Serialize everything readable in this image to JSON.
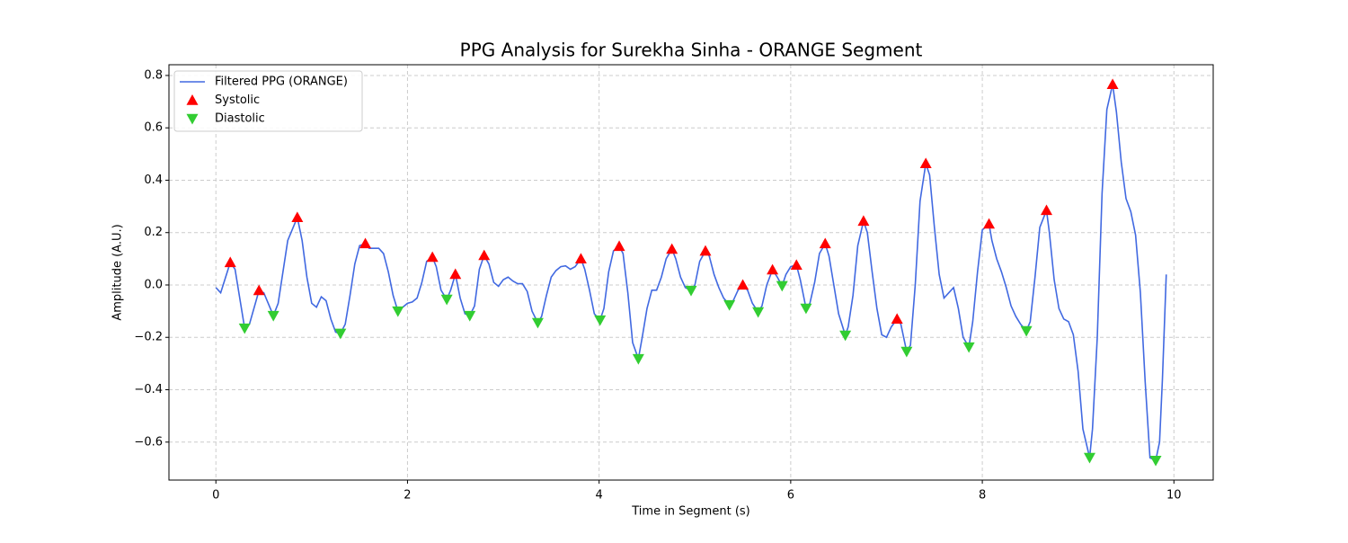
{
  "chart_data": {
    "type": "line",
    "title": "PPG Analysis for Surekha Sinha - ORANGE Segment",
    "x_label": "Time in Segment (s)",
    "y_label": "Amplitude (A.U.)",
    "xlim": [
      -0.49,
      10.41
    ],
    "ylim": [
      -0.745,
      0.841
    ],
    "xticks": [
      0,
      2,
      4,
      6,
      8,
      10
    ],
    "yticks": [
      {
        "value": -0.6,
        "label": "−0.6"
      },
      {
        "value": -0.4,
        "label": "−0.4"
      },
      {
        "value": -0.2,
        "label": "−0.2"
      },
      {
        "value": 0,
        "label": "0.0"
      },
      0.2,
      0.4,
      0.6,
      0.8
    ],
    "grid": true,
    "legend": "upper left",
    "series": [
      {
        "name": "Filtered PPG (ORANGE)",
        "color": "#4169e1",
        "marker": "line",
        "x": [
          0,
          0.05,
          0.15,
          0.2,
          0.3,
          0.35,
          0.45,
          0.5,
          0.6,
          0.65,
          0.75,
          0.85,
          0.9,
          0.95,
          1.0,
          1.05,
          1.1,
          1.15,
          1.2,
          1.25,
          1.3,
          1.35,
          1.4,
          1.45,
          1.5,
          1.56,
          1.6,
          1.7,
          1.75,
          1.8,
          1.85,
          1.9,
          1.95,
          2.0,
          2.05,
          2.1,
          2.15,
          2.2,
          2.26,
          2.3,
          2.35,
          2.41,
          2.45,
          2.5,
          2.55,
          2.6,
          2.65,
          2.7,
          2.75,
          2.8,
          2.85,
          2.9,
          2.95,
          3.0,
          3.05,
          3.1,
          3.15,
          3.2,
          3.25,
          3.3,
          3.36,
          3.4,
          3.45,
          3.5,
          3.55,
          3.6,
          3.65,
          3.7,
          3.75,
          3.81,
          3.85,
          3.9,
          3.95,
          4.01,
          4.05,
          4.1,
          4.15,
          4.21,
          4.25,
          4.3,
          4.35,
          4.41,
          4.45,
          4.5,
          4.55,
          4.6,
          4.65,
          4.7,
          4.76,
          4.8,
          4.85,
          4.9,
          4.96,
          5.0,
          5.05,
          5.11,
          5.15,
          5.2,
          5.25,
          5.3,
          5.36,
          5.4,
          5.45,
          5.5,
          5.55,
          5.6,
          5.66,
          5.7,
          5.75,
          5.81,
          5.86,
          5.91,
          5.95,
          6.0,
          6.06,
          6.1,
          6.16,
          6.2,
          6.25,
          6.3,
          6.36,
          6.4,
          6.45,
          6.5,
          6.57,
          6.6,
          6.65,
          6.7,
          6.76,
          6.8,
          6.85,
          6.9,
          6.95,
          7.0,
          7.05,
          7.11,
          7.15,
          7.21,
          7.25,
          7.3,
          7.35,
          7.41,
          7.45,
          7.5,
          7.55,
          7.6,
          7.65,
          7.7,
          7.75,
          7.8,
          7.86,
          7.9,
          7.95,
          8.0,
          8.07,
          8.1,
          8.15,
          8.2,
          8.25,
          8.3,
          8.35,
          8.4,
          8.46,
          8.5,
          8.55,
          8.6,
          8.67,
          8.7,
          8.75,
          8.8,
          8.85,
          8.9,
          8.95,
          9.0,
          9.05,
          9.12,
          9.15,
          9.2,
          9.25,
          9.3,
          9.36,
          9.4,
          9.45,
          9.5,
          9.55,
          9.6,
          9.65,
          9.7,
          9.75,
          9.81,
          9.85,
          9.88,
          9.92
        ],
        "values": [
          -0.01,
          -0.03,
          0.086,
          0.06,
          -0.165,
          -0.15,
          -0.021,
          -0.03,
          -0.117,
          -0.07,
          0.17,
          0.258,
          0.17,
          0.03,
          -0.07,
          -0.085,
          -0.045,
          -0.06,
          -0.13,
          -0.18,
          -0.185,
          -0.15,
          -0.04,
          0.08,
          0.15,
          0.158,
          0.14,
          0.14,
          0.12,
          0.05,
          -0.04,
          -0.1,
          -0.085,
          -0.07,
          -0.065,
          -0.05,
          0.01,
          0.09,
          0.106,
          0.07,
          -0.02,
          -0.055,
          -0.02,
          0.041,
          -0.05,
          -0.11,
          -0.117,
          -0.08,
          0.06,
          0.113,
          0.08,
          0.01,
          -0.005,
          0.02,
          0.03,
          0.015,
          0.005,
          0.005,
          -0.025,
          -0.1,
          -0.144,
          -0.12,
          -0.04,
          0.03,
          0.055,
          0.07,
          0.073,
          0.06,
          0.07,
          0.1,
          0.06,
          -0.02,
          -0.11,
          -0.134,
          -0.09,
          0.05,
          0.13,
          0.148,
          0.12,
          -0.03,
          -0.22,
          -0.282,
          -0.2,
          -0.09,
          -0.02,
          -0.02,
          0.03,
          0.1,
          0.137,
          0.1,
          0.03,
          -0.01,
          -0.021,
          0.0,
          0.09,
          0.13,
          0.11,
          0.04,
          -0.01,
          -0.05,
          -0.076,
          -0.06,
          -0.02,
          0.0,
          -0.02,
          -0.07,
          -0.103,
          -0.08,
          0.0,
          0.058,
          0.03,
          -0.003,
          0.04,
          0.07,
          0.076,
          0.02,
          -0.089,
          -0.07,
          0.01,
          0.12,
          0.158,
          0.11,
          0.0,
          -0.11,
          -0.192,
          -0.16,
          -0.04,
          0.15,
          0.244,
          0.2,
          0.05,
          -0.09,
          -0.19,
          -0.2,
          -0.16,
          -0.13,
          -0.15,
          -0.254,
          -0.23,
          0.0,
          0.32,
          0.464,
          0.42,
          0.22,
          0.04,
          -0.05,
          -0.03,
          -0.01,
          -0.09,
          -0.2,
          -0.237,
          -0.14,
          0.05,
          0.21,
          0.233,
          0.17,
          0.1,
          0.05,
          -0.01,
          -0.08,
          -0.12,
          -0.15,
          -0.175,
          -0.14,
          0.03,
          0.22,
          0.285,
          0.2,
          0.02,
          -0.09,
          -0.13,
          -0.14,
          -0.19,
          -0.33,
          -0.55,
          -0.659,
          -0.55,
          -0.2,
          0.35,
          0.67,
          0.766,
          0.66,
          0.47,
          0.33,
          0.28,
          0.19,
          -0.03,
          -0.37,
          -0.66,
          -0.67,
          -0.6,
          -0.36,
          0.04
        ]
      },
      {
        "name": "Systolic",
        "color": "#ff0000",
        "marker": "up",
        "x": [
          0.15,
          0.45,
          0.85,
          1.56,
          2.26,
          2.5,
          2.8,
          3.81,
          4.21,
          4.76,
          5.11,
          5.5,
          5.81,
          6.06,
          6.36,
          6.76,
          7.11,
          7.41,
          8.07,
          8.67,
          9.36
        ],
        "values": [
          0.086,
          -0.021,
          0.258,
          0.158,
          0.106,
          0.041,
          0.113,
          0.1,
          0.148,
          0.137,
          0.13,
          0.0,
          0.058,
          0.076,
          0.158,
          0.244,
          -0.13,
          0.464,
          0.233,
          0.285,
          0.766
        ]
      },
      {
        "name": "Diastolic",
        "color": "#32cd32",
        "marker": "down",
        "x": [
          0.3,
          0.6,
          1.3,
          1.9,
          2.41,
          2.65,
          3.36,
          4.01,
          4.41,
          4.96,
          5.36,
          5.66,
          5.91,
          6.16,
          6.57,
          7.21,
          7.86,
          8.46,
          9.12,
          9.81
        ],
        "values": [
          -0.165,
          -0.117,
          -0.185,
          -0.1,
          -0.055,
          -0.117,
          -0.144,
          -0.134,
          -0.282,
          -0.021,
          -0.076,
          -0.103,
          -0.003,
          -0.089,
          -0.192,
          -0.254,
          -0.237,
          -0.175,
          -0.659,
          -0.67
        ]
      }
    ]
  }
}
